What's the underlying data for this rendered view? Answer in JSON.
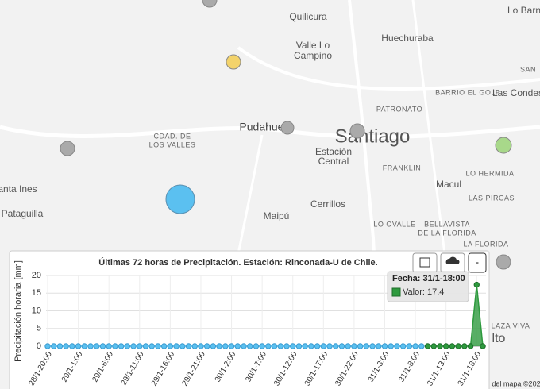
{
  "map": {
    "labels": [
      "Quilicura",
      "Huechuraba",
      "Valle Lo",
      "Campino",
      "PATRONATO",
      "BARRIO EL GOLF",
      "Las Condes",
      "Pudahuel",
      "Santiago",
      "CDAD. DE",
      "LOS VALLES",
      "Estación",
      "Central",
      "FRANKLIN",
      "LO HERMIDA",
      "Macul",
      "LAS PIRCAS",
      "anta Ines",
      "Pataguilla",
      "Maipú",
      "Cerrillos",
      "LO OVALLE",
      "BELLAVISTA",
      "DE LA FLORIDA",
      "LA FLORIDA",
      "Lo Barn",
      "SAN",
      "LAZA VIVA",
      "lto"
    ],
    "attribution": "del mapa ©202"
  },
  "chart_data": {
    "type": "line",
    "title": "Últimas 72 horas de Precipitación. Estación: Rinconada-U de Chile.",
    "y_label": "Precipitación horaria [mm]",
    "categories": [
      "28/1-20:00",
      null,
      null,
      null,
      null,
      "29/1-1:00",
      null,
      null,
      null,
      null,
      "29/1-6:00",
      null,
      null,
      null,
      null,
      "29/1-11:00",
      null,
      null,
      null,
      null,
      "29/1-16:00",
      null,
      null,
      null,
      null,
      "29/1-21:00",
      null,
      null,
      null,
      null,
      "30/1-2:00",
      null,
      null,
      null,
      null,
      "30/1-7:00",
      null,
      null,
      null,
      null,
      "30/1-12:00",
      null,
      null,
      null,
      null,
      "30/1-17:00",
      null,
      null,
      null,
      null,
      "30/1-22:00",
      null,
      null,
      null,
      null,
      "31/1-3:00",
      null,
      null,
      null,
      null,
      "31/1-8:00",
      null,
      null,
      null,
      null,
      "31/1-13:00",
      null,
      null,
      null,
      null,
      "31/1-18:00",
      null
    ],
    "series": [
      {
        "color": "#5bc0f0",
        "values": [
          0,
          0,
          0,
          0,
          0,
          0,
          0,
          0,
          0,
          0,
          0,
          0,
          0,
          0,
          0,
          0,
          0,
          0,
          0,
          0,
          0,
          0,
          0,
          0,
          0,
          0,
          0,
          0,
          0,
          0,
          0,
          0,
          0,
          0,
          0,
          0,
          0,
          0,
          0,
          0,
          0,
          0,
          0,
          0,
          0,
          0,
          0,
          0,
          0,
          0,
          0,
          0,
          0,
          0,
          0,
          0,
          0,
          0,
          0,
          0,
          0,
          0,
          null,
          null,
          null,
          null,
          null,
          null,
          null,
          null,
          null,
          null
        ]
      },
      {
        "color": "#2e9a3e",
        "values": [
          null,
          null,
          null,
          null,
          null,
          null,
          null,
          null,
          null,
          null,
          null,
          null,
          null,
          null,
          null,
          null,
          null,
          null,
          null,
          null,
          null,
          null,
          null,
          null,
          null,
          null,
          null,
          null,
          null,
          null,
          null,
          null,
          null,
          null,
          null,
          null,
          null,
          null,
          null,
          null,
          null,
          null,
          null,
          null,
          null,
          null,
          null,
          null,
          null,
          null,
          null,
          null,
          null,
          null,
          null,
          null,
          null,
          null,
          null,
          null,
          null,
          null,
          0,
          0,
          0,
          0,
          0,
          0,
          0,
          0,
          17.4,
          0
        ]
      }
    ],
    "ylim": [
      0,
      20
    ],
    "yticks": [
      0,
      5,
      10,
      15,
      20
    ],
    "grid": true,
    "tooltip": {
      "date": "Fecha: 31/1-18:00",
      "value": "Valor: 17.4"
    },
    "buttons": [
      "-"
    ]
  }
}
